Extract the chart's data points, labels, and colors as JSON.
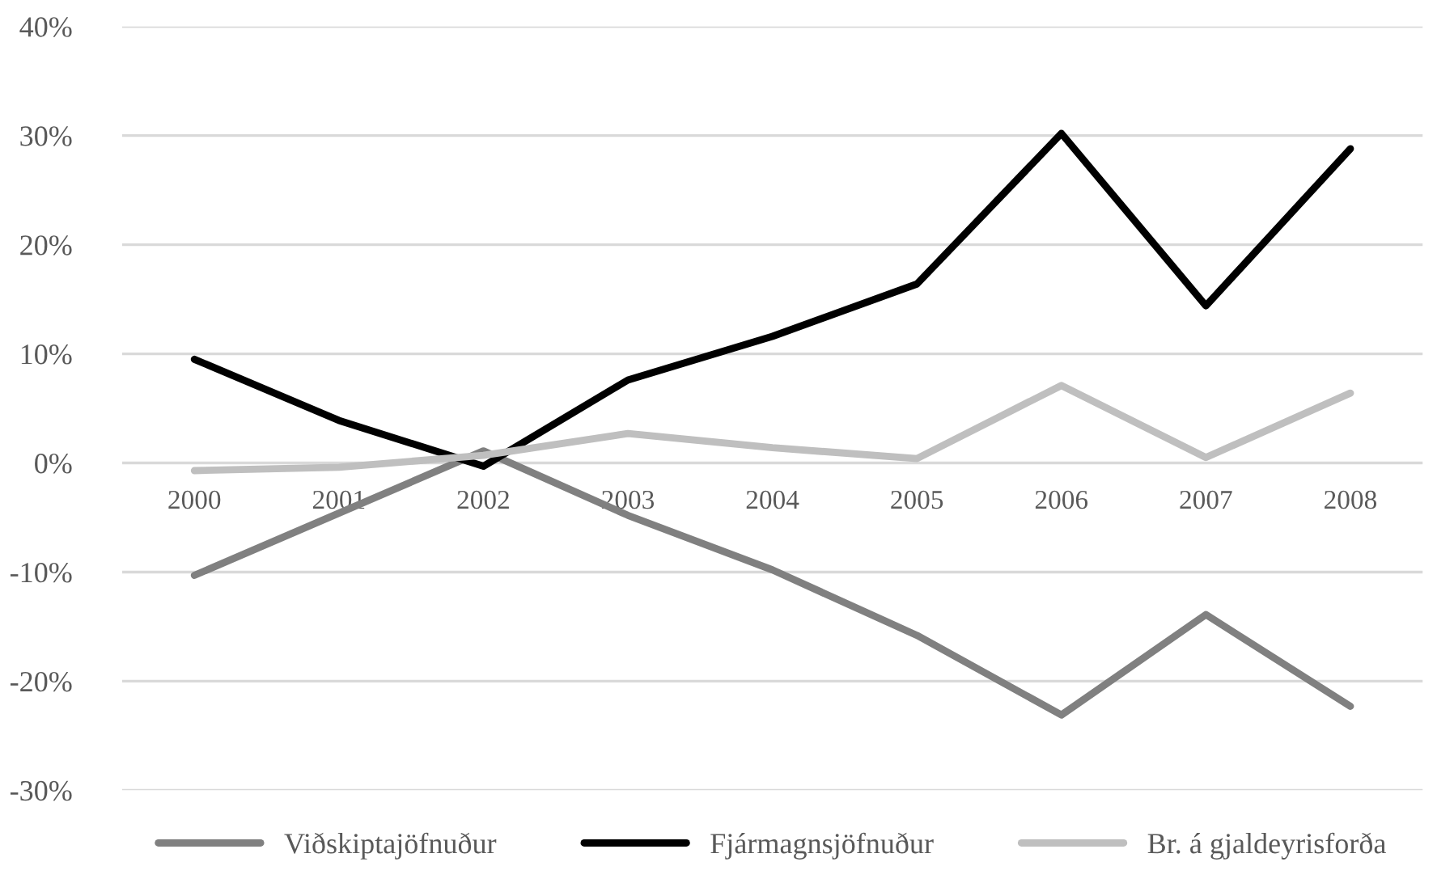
{
  "chart_data": {
    "type": "line",
    "categories": [
      "2000",
      "2001",
      "2002",
      "2003",
      "2004",
      "2005",
      "2006",
      "2007",
      "2008"
    ],
    "series": [
      {
        "name": "Viðskiptajöfnuður",
        "color": "#808080",
        "values": [
          -10.3,
          -4.6,
          1.1,
          -4.8,
          -9.8,
          -15.8,
          -23.1,
          -13.9,
          -22.3
        ]
      },
      {
        "name": "Fjármagnsjöfnuður",
        "color": "#000000",
        "values": [
          9.5,
          3.9,
          -0.3,
          7.6,
          11.6,
          16.4,
          30.2,
          14.4,
          28.8
        ]
      },
      {
        "name": "Br. á gjaldeyrisforða",
        "color": "#bfbfbf",
        "values": [
          -0.7,
          -0.4,
          0.7,
          2.7,
          1.4,
          0.4,
          7.1,
          0.5,
          6.4
        ]
      }
    ],
    "ylim": [
      -30,
      40
    ],
    "yticks": [
      {
        "value": -30,
        "label": "-30%"
      },
      {
        "value": -20,
        "label": "-20%"
      },
      {
        "value": -10,
        "label": "-10%"
      },
      {
        "value": 0,
        "label": "0%"
      },
      {
        "value": 10,
        "label": "10%"
      },
      {
        "value": 20,
        "label": "20%"
      },
      {
        "value": 30,
        "label": "30%"
      },
      {
        "value": 40,
        "label": "40%"
      }
    ],
    "grid": "y",
    "legend": "bottom",
    "marker": "none",
    "line_style": "solid"
  }
}
